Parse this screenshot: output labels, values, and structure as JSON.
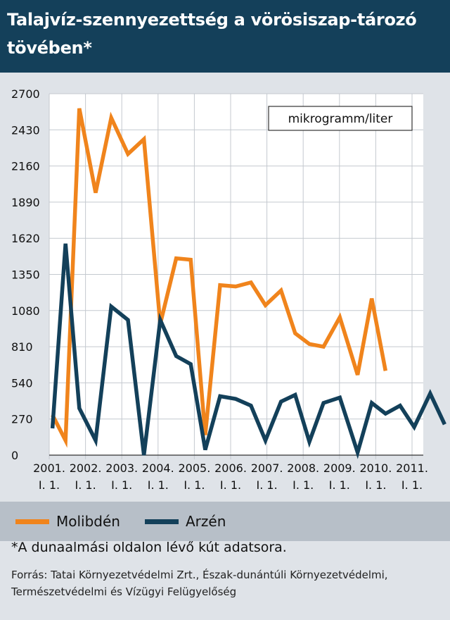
{
  "title": "Talajvíz-szennyezettség a vörösiszap-tározó tövében*",
  "unit": "mikrogramm/liter",
  "note": "*A dunaalmási oldalon lévő kút adatsora.",
  "source": "Forrás: Tatai Környezetvédelmi Zrt., Észak-dunántúli Környezetvédelmi, Természetvédelmi és Vízügyi Felügyelőség",
  "colors": {
    "header_bg": "#14405a",
    "molibden": "#f0841c",
    "arzen": "#13405a",
    "plot_bg": "#ffffff"
  },
  "chart_data": {
    "type": "line",
    "title": "Talajvíz-szennyezettség a vörösiszap-tározó tövében*",
    "ylabel": "mikrogramm/liter",
    "xlabel": "",
    "ylim": [
      0,
      2700
    ],
    "yticks": [
      0,
      270,
      540,
      810,
      1080,
      1350,
      1620,
      1890,
      2160,
      2430,
      2700
    ],
    "xlim": [
      2001.0,
      2011.0
    ],
    "xticks": [
      {
        "x": 2001,
        "line1": "2001.",
        "line2": "I. 1."
      },
      {
        "x": 2002,
        "line1": "2002.",
        "line2": "I. 1."
      },
      {
        "x": 2003,
        "line1": "2003.",
        "line2": "I. 1."
      },
      {
        "x": 2004,
        "line1": "2004.",
        "line2": "I. 1."
      },
      {
        "x": 2005,
        "line1": "2005.",
        "line2": "I. 1."
      },
      {
        "x": 2006,
        "line1": "2006.",
        "line2": "I. 1."
      },
      {
        "x": 2007,
        "line1": "2007.",
        "line2": "I. 1."
      },
      {
        "x": 2008,
        "line1": "2008.",
        "line2": "I. 1."
      },
      {
        "x": 2009,
        "line1": "2009.",
        "line2": "I. 1."
      },
      {
        "x": 2010,
        "line1": "2010.",
        "line2": "I. 1."
      },
      {
        "x": 2011,
        "line1": "2011.",
        "line2": "I. 1."
      }
    ],
    "grid": true,
    "legend_position": "bottom",
    "series": [
      {
        "name": "Molibdén",
        "color": "#f0841c",
        "points": [
          [
            2001.09,
            300
          ],
          [
            2001.45,
            110
          ],
          [
            2001.83,
            2590
          ],
          [
            2002.28,
            1960
          ],
          [
            2002.71,
            2520
          ],
          [
            2003.17,
            2250
          ],
          [
            2003.61,
            2360
          ],
          [
            2004.06,
            980
          ],
          [
            2004.5,
            1470
          ],
          [
            2004.9,
            1460
          ],
          [
            2005.3,
            150
          ],
          [
            2005.71,
            1270
          ],
          [
            2006.14,
            1260
          ],
          [
            2006.56,
            1290
          ],
          [
            2006.96,
            1120
          ],
          [
            2007.39,
            1230
          ],
          [
            2007.78,
            910
          ],
          [
            2008.17,
            830
          ],
          [
            2008.56,
            810
          ],
          [
            2009.01,
            1030
          ],
          [
            2009.5,
            600
          ],
          [
            2009.89,
            1170
          ],
          [
            2010.27,
            630
          ]
        ]
      },
      {
        "name": "Arzén",
        "color": "#13405a",
        "points": [
          [
            2001.09,
            200
          ],
          [
            2001.45,
            1580
          ],
          [
            2001.83,
            350
          ],
          [
            2002.28,
            110
          ],
          [
            2002.71,
            1110
          ],
          [
            2003.17,
            1010
          ],
          [
            2003.61,
            0
          ],
          [
            2004.06,
            1010
          ],
          [
            2004.5,
            740
          ],
          [
            2004.9,
            680
          ],
          [
            2005.3,
            40
          ],
          [
            2005.71,
            440
          ],
          [
            2006.14,
            420
          ],
          [
            2006.56,
            370
          ],
          [
            2006.96,
            110
          ],
          [
            2007.39,
            400
          ],
          [
            2007.78,
            450
          ],
          [
            2008.17,
            100
          ],
          [
            2008.56,
            390
          ],
          [
            2009.01,
            430
          ],
          [
            2009.5,
            20
          ],
          [
            2009.89,
            390
          ],
          [
            2010.27,
            310
          ],
          [
            2010.67,
            370
          ],
          [
            2011.06,
            210
          ],
          [
            2011.5,
            460
          ],
          [
            2011.9,
            230
          ]
        ]
      }
    ]
  }
}
